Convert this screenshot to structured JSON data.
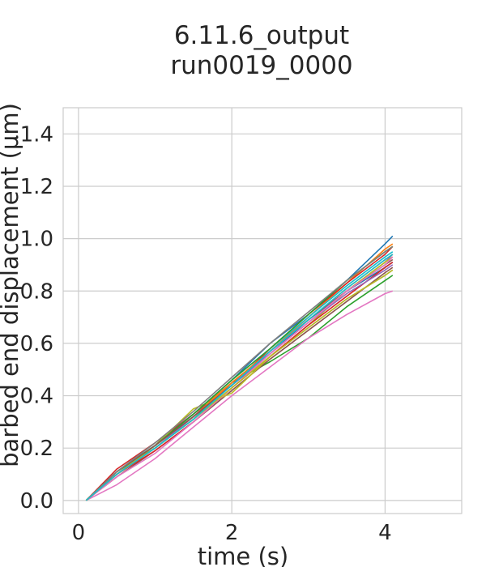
{
  "chart_data": {
    "type": "line",
    "title": [
      "6.11.6_output",
      "run0019_0000"
    ],
    "xlabel": "time (s)",
    "ylabel": "barbed end displacement (μm)",
    "xlim": [
      -0.2,
      5.0
    ],
    "ylim": [
      -0.05,
      1.5
    ],
    "xticks": [
      0,
      2,
      4
    ],
    "xtick_labels": [
      "0",
      "2",
      "4"
    ],
    "yticks": [
      0.0,
      0.2,
      0.4,
      0.6,
      0.8,
      1.0,
      1.2,
      1.4
    ],
    "ytick_labels": [
      "0.0",
      "0.2",
      "0.4",
      "0.6",
      "0.8",
      "1.0",
      "1.2",
      "1.4"
    ],
    "grid": true,
    "legend": "none",
    "colors": [
      "#1f77b4",
      "#ff7f0e",
      "#2ca02c",
      "#d62728",
      "#9467bd",
      "#8c564b",
      "#e377c2",
      "#7f7f7f",
      "#bcbd22",
      "#17becf"
    ],
    "x": [
      0.1,
      0.5,
      1.0,
      1.5,
      2.0,
      2.5,
      3.0,
      3.5,
      4.0,
      4.1
    ],
    "series": [
      {
        "values": [
          0.0,
          0.1,
          0.21,
          0.33,
          0.46,
          0.6,
          0.71,
          0.84,
          0.98,
          1.01
        ]
      },
      {
        "values": [
          0.0,
          0.11,
          0.21,
          0.33,
          0.45,
          0.57,
          0.7,
          0.83,
          0.96,
          0.98
        ]
      },
      {
        "values": [
          0.0,
          0.11,
          0.2,
          0.31,
          0.45,
          0.53,
          0.62,
          0.74,
          0.84,
          0.86
        ]
      },
      {
        "values": [
          0.0,
          0.12,
          0.22,
          0.33,
          0.44,
          0.58,
          0.71,
          0.83,
          0.94,
          0.97
        ]
      },
      {
        "values": [
          0.0,
          0.1,
          0.2,
          0.32,
          0.45,
          0.56,
          0.68,
          0.8,
          0.91,
          0.94
        ]
      },
      {
        "values": [
          0.0,
          0.09,
          0.19,
          0.3,
          0.42,
          0.54,
          0.65,
          0.76,
          0.87,
          0.89
        ]
      },
      {
        "values": [
          0.0,
          0.06,
          0.16,
          0.28,
          0.4,
          0.51,
          0.62,
          0.71,
          0.79,
          0.8
        ]
      },
      {
        "values": [
          0.0,
          0.1,
          0.2,
          0.31,
          0.43,
          0.55,
          0.66,
          0.77,
          0.86,
          0.88
        ]
      },
      {
        "values": [
          0.0,
          0.1,
          0.21,
          0.35,
          0.41,
          0.55,
          0.67,
          0.8,
          0.91,
          0.93
        ]
      },
      {
        "values": [
          0.0,
          0.11,
          0.21,
          0.33,
          0.46,
          0.58,
          0.7,
          0.82,
          0.93,
          0.95
        ]
      },
      {
        "values": [
          0.0,
          0.11,
          0.21,
          0.32,
          0.44,
          0.56,
          0.69,
          0.8,
          0.89,
          0.91
        ]
      },
      {
        "values": [
          0.0,
          0.1,
          0.2,
          0.32,
          0.45,
          0.57,
          0.69,
          0.81,
          0.92,
          0.94
        ]
      },
      {
        "values": [
          0.0,
          0.11,
          0.21,
          0.33,
          0.46,
          0.58,
          0.71,
          0.84,
          0.95,
          0.97
        ]
      },
      {
        "values": [
          0.0,
          0.1,
          0.19,
          0.3,
          0.43,
          0.55,
          0.67,
          0.78,
          0.89,
          0.91
        ]
      },
      {
        "values": [
          0.0,
          0.1,
          0.2,
          0.32,
          0.44,
          0.56,
          0.68,
          0.79,
          0.88,
          0.9
        ]
      },
      {
        "values": [
          0.0,
          0.11,
          0.21,
          0.32,
          0.44,
          0.57,
          0.69,
          0.8,
          0.9,
          0.92
        ]
      },
      {
        "values": [
          0.0,
          0.09,
          0.18,
          0.3,
          0.43,
          0.56,
          0.68,
          0.8,
          0.9,
          0.93
        ]
      },
      {
        "values": [
          0.0,
          0.11,
          0.22,
          0.34,
          0.47,
          0.6,
          0.72,
          0.84,
          0.95,
          0.97
        ]
      },
      {
        "values": [
          0.0,
          0.1,
          0.2,
          0.31,
          0.43,
          0.55,
          0.66,
          0.77,
          0.86,
          0.88
        ]
      },
      {
        "values": [
          0.0,
          0.1,
          0.2,
          0.31,
          0.44,
          0.57,
          0.69,
          0.81,
          0.92,
          0.94
        ]
      }
    ]
  }
}
